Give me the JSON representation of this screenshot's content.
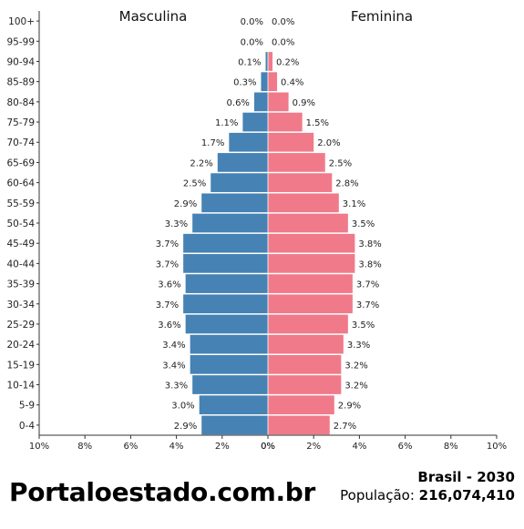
{
  "site": {
    "brand": "Portaloestado.com.br"
  },
  "footer": {
    "country_year": "Brasil - 2030",
    "population_label": "População:",
    "population_value": "216,074,410"
  },
  "colors": {
    "male": "#4682B4",
    "female": "#F07A8A"
  },
  "chart_data": {
    "type": "bar",
    "orientation": "horizontal",
    "kind": "population-pyramid",
    "categories": [
      "0-4",
      "5-9",
      "10-14",
      "15-19",
      "20-24",
      "25-29",
      "30-34",
      "35-39",
      "40-44",
      "45-49",
      "50-54",
      "55-59",
      "60-64",
      "65-69",
      "70-74",
      "75-79",
      "80-84",
      "85-89",
      "90-94",
      "95-99",
      "100+"
    ],
    "series": [
      {
        "name": "Masculina",
        "side": "left",
        "color": "#4682B4",
        "values": [
          2.9,
          3.0,
          3.3,
          3.4,
          3.4,
          3.6,
          3.7,
          3.6,
          3.7,
          3.7,
          3.3,
          2.9,
          2.5,
          2.2,
          1.7,
          1.1,
          0.6,
          0.3,
          0.1,
          0.0,
          0.0
        ]
      },
      {
        "name": "Feminina",
        "side": "right",
        "color": "#F07A8A",
        "values": [
          2.7,
          2.9,
          3.2,
          3.2,
          3.3,
          3.5,
          3.7,
          3.7,
          3.8,
          3.8,
          3.5,
          3.1,
          2.8,
          2.5,
          2.0,
          1.5,
          0.9,
          0.4,
          0.2,
          0.0,
          0.0
        ]
      }
    ],
    "xlim": [
      0,
      10
    ],
    "x_ticks": [
      "10%",
      "8%",
      "6%",
      "4%",
      "2%",
      "0%"
    ],
    "x_ticks_right": [
      "0%",
      "2%",
      "4%",
      "6%",
      "8%",
      "10%"
    ],
    "value_unit": "%",
    "grid": false
  }
}
